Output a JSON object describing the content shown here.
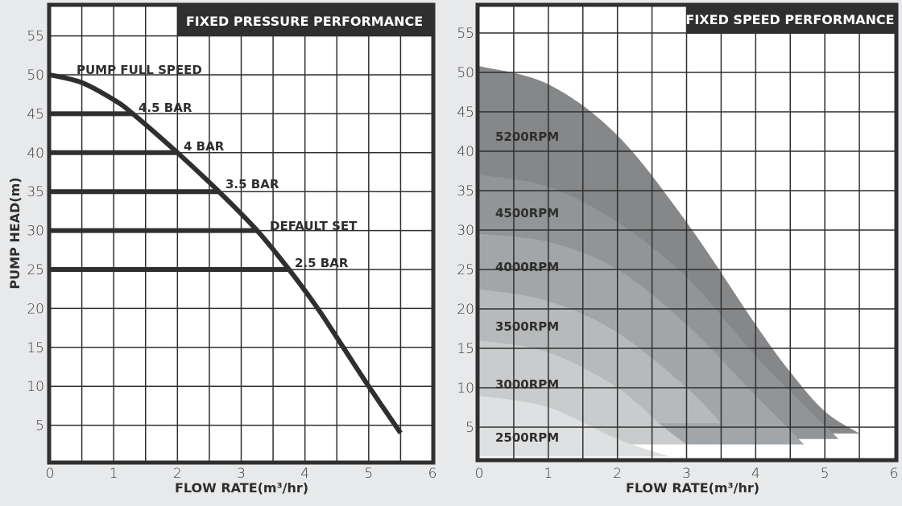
{
  "chart_data": [
    {
      "type": "line",
      "title": "FIXED PRESSURE PERFORMANCE",
      "xlabel": "FLOW RATE(m³/hr)",
      "ylabel": "PUMP HEAD(m)",
      "xlim": [
        0,
        6
      ],
      "ylim": [
        0,
        58
      ],
      "x_ticks": [
        "0",
        "1",
        "2",
        "3",
        "4",
        "5",
        "6"
      ],
      "y_ticks": [
        "5",
        "10",
        "15",
        "20",
        "25",
        "30",
        "35",
        "40",
        "45",
        "50",
        "55"
      ],
      "grid": true,
      "series": [
        {
          "name": "PUMP FULL SPEED",
          "x": [
            0,
            0.5,
            1.0,
            1.3,
            2.0,
            2.65,
            3.25,
            3.75,
            4.2,
            4.6,
            5.0,
            5.5
          ],
          "y": [
            50,
            49,
            46.8,
            45,
            40,
            35,
            30,
            25,
            20,
            15,
            10,
            4
          ]
        }
      ],
      "pressure_lines": [
        {
          "label": "4.5 BAR",
          "head": 45,
          "flow_end": 1.3
        },
        {
          "label": "4 BAR",
          "head": 40,
          "flow_end": 2.0
        },
        {
          "label": "3.5 BAR",
          "head": 35,
          "flow_end": 2.65
        },
        {
          "label": "DEFAULT SET",
          "head": 30,
          "flow_end": 3.25
        },
        {
          "label": "2.5 BAR",
          "head": 25,
          "flow_end": 3.75
        }
      ],
      "annotations": [
        "PUMP FULL SPEED",
        "4.5 BAR",
        "4 BAR",
        "3.5 BAR",
        "DEFAULT SET",
        "2.5 BAR"
      ]
    },
    {
      "type": "area",
      "title": "FIXED SPEED PERFORMANCE",
      "xlabel": "FLOW RATE(m³/hr)",
      "ylabel": "",
      "xlim": [
        0,
        6
      ],
      "ylim": [
        0,
        58
      ],
      "x_ticks": [
        "0",
        "1",
        "2",
        "3",
        "4",
        "5",
        "6"
      ],
      "y_ticks": [
        "5",
        "10",
        "15",
        "20",
        "25",
        "30",
        "35",
        "40",
        "45",
        "50",
        "55"
      ],
      "grid": true,
      "series": [
        {
          "name": "5200RPM",
          "color": "#858789",
          "x": [
            0,
            1,
            2,
            3,
            4,
            4.5,
            5.0,
            5.5
          ],
          "y": [
            50.8,
            48.5,
            42,
            31,
            18,
            12,
            7,
            4.2
          ]
        },
        {
          "name": "4500RPM",
          "color": "#929597",
          "x": [
            0,
            1,
            2,
            3,
            4,
            4.5,
            5.2
          ],
          "y": [
            37,
            35.5,
            31,
            24,
            14,
            9.5,
            3.5
          ]
        },
        {
          "name": "4000RPM",
          "color": "#a3a6a8",
          "x": [
            0,
            1,
            2,
            3,
            4,
            4.7
          ],
          "y": [
            29.5,
            28.5,
            25,
            18,
            9,
            2.8
          ]
        },
        {
          "name": "3500RPM",
          "color": "#b7b9bb",
          "x": [
            0,
            1,
            2,
            3,
            3.5
          ],
          "y": [
            22.5,
            21,
            17,
            10,
            5.5
          ]
        },
        {
          "name": "3000RPM",
          "color": "#c9cbcc",
          "x": [
            0,
            1,
            2,
            2.6,
            3.0
          ],
          "y": [
            16,
            14.5,
            10,
            5.5,
            2.8
          ]
        },
        {
          "name": "2500RPM",
          "color": "#dfe0e1",
          "x": [
            0,
            1,
            2,
            2.75
          ],
          "y": [
            9,
            7.5,
            3.5,
            1.3
          ]
        }
      ]
    }
  ]
}
